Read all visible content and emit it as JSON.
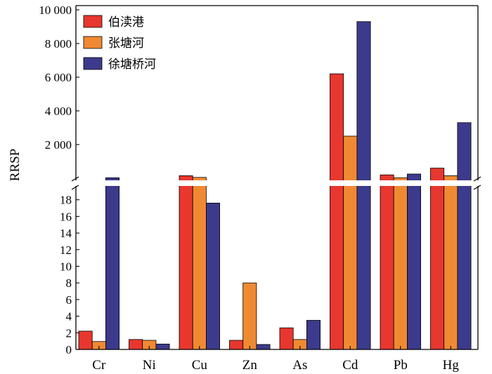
{
  "chart_data": {
    "type": "bar",
    "ylabel": "RRSP",
    "categories": [
      "Cr",
      "Ni",
      "Cu",
      "Zn",
      "As",
      "Cd",
      "Pb",
      "Hg"
    ],
    "series": [
      {
        "name": "伯渎港",
        "color": "#e8372e",
        "values": [
          2.2,
          1.2,
          150,
          1.1,
          2.6,
          6200,
          200,
          600
        ]
      },
      {
        "name": "张塘河",
        "color": "#f08a32",
        "values": [
          0.95,
          1.1,
          50,
          8.0,
          1.2,
          2500,
          30,
          150
        ]
      },
      {
        "name": "徐塘桥河",
        "color": "#3c3a8c",
        "values": [
          28,
          0.65,
          17.6,
          0.6,
          3.5,
          9300,
          250,
          3300
        ]
      }
    ],
    "axis_break": {
      "lower_range": [
        0,
        20
      ],
      "upper_range": [
        0,
        10000
      ],
      "lower_ticks": [
        "0",
        "2",
        "4",
        "6",
        "8",
        "10",
        "12",
        "14",
        "16",
        "18"
      ],
      "upper_ticks": [
        "2 000",
        "4 000",
        "6 000",
        "8 000",
        "10 000"
      ]
    },
    "legend_position": "top-left",
    "grid": false
  }
}
